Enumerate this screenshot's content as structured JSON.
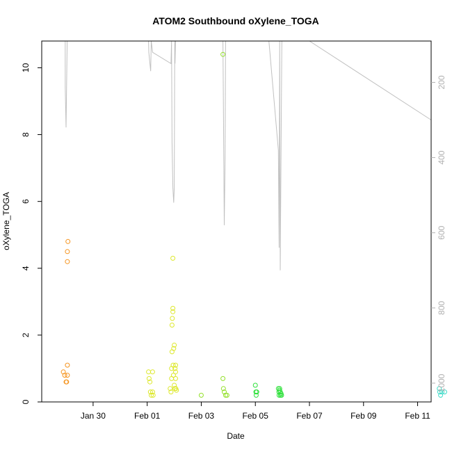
{
  "chart_data": {
    "type": "scatter",
    "title": "ATOM2 Southbound oXylene_TOGA",
    "xlabel": "Date",
    "ylabel": "oXylene_TOGA",
    "x_ticks": [
      "Jan 30",
      "Feb 01",
      "Feb 03",
      "Feb 05",
      "Feb 07",
      "Feb 09",
      "Feb 11"
    ],
    "x_tick_days": [
      30,
      32,
      34,
      36,
      38,
      40,
      42
    ],
    "xlim_days": [
      28.1,
      42.5
    ],
    "ylim": [
      0,
      10.8
    ],
    "y_ticks": [
      0,
      2,
      4,
      6,
      8,
      10
    ],
    "right_axis": {
      "label": "",
      "ticks": [
        200,
        400,
        600,
        800,
        1000
      ],
      "lim": [
        90,
        1050
      ],
      "reversed": true,
      "color": "#b0b0b0"
    },
    "grid": false,
    "legend": "none",
    "colors": {
      "orange": "#f5941e",
      "yellow": "#dde82c",
      "lime": "#93e02a",
      "green": "#2ee03a",
      "cyan": "#3fdcc9",
      "profile_line": "#c0c0c0"
    },
    "points": [
      {
        "x": 28.9,
        "y": 0.9,
        "c": "orange"
      },
      {
        "x": 28.95,
        "y": 0.8,
        "c": "orange"
      },
      {
        "x": 29.0,
        "y": 0.6,
        "c": "orange"
      },
      {
        "x": 29.02,
        "y": 0.6,
        "c": "orange"
      },
      {
        "x": 29.05,
        "y": 0.8,
        "c": "orange"
      },
      {
        "x": 29.05,
        "y": 1.1,
        "c": "orange"
      },
      {
        "x": 29.05,
        "y": 4.2,
        "c": "orange"
      },
      {
        "x": 29.05,
        "y": 4.5,
        "c": "orange"
      },
      {
        "x": 29.07,
        "y": 4.8,
        "c": "orange"
      },
      {
        "x": 32.05,
        "y": 0.9,
        "c": "yellow"
      },
      {
        "x": 32.07,
        "y": 0.7,
        "c": "yellow"
      },
      {
        "x": 32.1,
        "y": 0.6,
        "c": "yellow"
      },
      {
        "x": 32.12,
        "y": 0.3,
        "c": "yellow"
      },
      {
        "x": 32.15,
        "y": 0.2,
        "c": "yellow"
      },
      {
        "x": 32.2,
        "y": 0.3,
        "c": "yellow"
      },
      {
        "x": 32.2,
        "y": 0.9,
        "c": "yellow"
      },
      {
        "x": 32.22,
        "y": 0.2,
        "c": "yellow"
      },
      {
        "x": 32.85,
        "y": 0.4,
        "c": "yellow"
      },
      {
        "x": 32.88,
        "y": 0.3,
        "c": "yellow"
      },
      {
        "x": 32.9,
        "y": 0.7,
        "c": "yellow"
      },
      {
        "x": 32.9,
        "y": 1.0,
        "c": "yellow"
      },
      {
        "x": 32.92,
        "y": 1.5,
        "c": "yellow"
      },
      {
        "x": 32.92,
        "y": 2.3,
        "c": "yellow"
      },
      {
        "x": 32.93,
        "y": 2.5,
        "c": "yellow"
      },
      {
        "x": 32.95,
        "y": 2.7,
        "c": "yellow"
      },
      {
        "x": 32.95,
        "y": 2.8,
        "c": "yellow"
      },
      {
        "x": 32.95,
        "y": 4.3,
        "c": "yellow"
      },
      {
        "x": 32.96,
        "y": 1.1,
        "c": "yellow"
      },
      {
        "x": 32.97,
        "y": 0.8,
        "c": "yellow"
      },
      {
        "x": 32.98,
        "y": 1.6,
        "c": "yellow"
      },
      {
        "x": 33.0,
        "y": 1.7,
        "c": "yellow"
      },
      {
        "x": 33.0,
        "y": 0.5,
        "c": "yellow"
      },
      {
        "x": 33.02,
        "y": 0.4,
        "c": "yellow"
      },
      {
        "x": 33.03,
        "y": 1.0,
        "c": "yellow"
      },
      {
        "x": 33.05,
        "y": 0.9,
        "c": "yellow"
      },
      {
        "x": 33.05,
        "y": 0.7,
        "c": "yellow"
      },
      {
        "x": 33.05,
        "y": 1.1,
        "c": "yellow"
      },
      {
        "x": 33.06,
        "y": 0.4,
        "c": "yellow"
      },
      {
        "x": 33.08,
        "y": 0.35,
        "c": "yellow"
      },
      {
        "x": 34.0,
        "y": 0.2,
        "c": "lime"
      },
      {
        "x": 34.8,
        "y": 10.4,
        "c": "lime"
      },
      {
        "x": 34.8,
        "y": 0.7,
        "c": "lime"
      },
      {
        "x": 34.82,
        "y": 0.4,
        "c": "lime"
      },
      {
        "x": 34.85,
        "y": 0.3,
        "c": "lime"
      },
      {
        "x": 34.9,
        "y": 0.2,
        "c": "lime"
      },
      {
        "x": 34.95,
        "y": 0.2,
        "c": "lime"
      },
      {
        "x": 36.0,
        "y": 0.5,
        "c": "green"
      },
      {
        "x": 36.02,
        "y": 0.3,
        "c": "green"
      },
      {
        "x": 36.03,
        "y": 0.2,
        "c": "green"
      },
      {
        "x": 36.05,
        "y": 0.3,
        "c": "green"
      },
      {
        "x": 36.85,
        "y": 0.4,
        "c": "green"
      },
      {
        "x": 36.87,
        "y": 0.3,
        "c": "green"
      },
      {
        "x": 36.88,
        "y": 0.2,
        "c": "green"
      },
      {
        "x": 36.9,
        "y": 0.4,
        "c": "green"
      },
      {
        "x": 36.9,
        "y": 0.35,
        "c": "green"
      },
      {
        "x": 36.92,
        "y": 0.3,
        "c": "green"
      },
      {
        "x": 36.93,
        "y": 0.2,
        "c": "green"
      },
      {
        "x": 36.95,
        "y": 0.25,
        "c": "green"
      },
      {
        "x": 36.97,
        "y": 0.2,
        "c": "green"
      },
      {
        "x": 42.8,
        "y": 0.4,
        "c": "cyan"
      },
      {
        "x": 42.82,
        "y": 0.3,
        "c": "cyan"
      },
      {
        "x": 42.85,
        "y": 0.2,
        "c": "cyan"
      },
      {
        "x": 42.9,
        "y": 0.3,
        "c": "cyan"
      },
      {
        "x": 43.0,
        "y": 0.3,
        "c": "cyan"
      }
    ],
    "profile_line": [
      [
        28.96,
        90
      ],
      [
        28.97,
        90
      ],
      [
        28.97,
        210
      ],
      [
        28.98,
        250
      ],
      [
        29.0,
        320
      ],
      [
        29.04,
        90
      ],
      [
        29.05,
        90
      ],
      [
        32.05,
        90
      ],
      [
        32.06,
        120
      ],
      [
        32.1,
        150
      ],
      [
        32.13,
        170
      ],
      [
        32.15,
        90
      ],
      [
        32.2,
        120
      ],
      [
        32.88,
        150
      ],
      [
        32.9,
        90
      ],
      [
        32.92,
        360
      ],
      [
        32.95,
        480
      ],
      [
        32.98,
        520
      ],
      [
        33.0,
        480
      ],
      [
        33.02,
        90
      ],
      [
        33.03,
        150
      ],
      [
        33.05,
        90
      ],
      [
        34.8,
        90
      ],
      [
        34.85,
        580
      ],
      [
        34.88,
        400
      ],
      [
        34.9,
        90
      ],
      [
        35.9,
        90
      ],
      [
        36.5,
        90
      ],
      [
        36.85,
        380
      ],
      [
        36.88,
        640
      ],
      [
        36.9,
        90
      ],
      [
        36.92,
        700
      ],
      [
        36.95,
        380
      ],
      [
        36.98,
        90
      ],
      [
        38.0,
        90
      ],
      [
        42.8,
        300
      ],
      [
        42.85,
        90
      ],
      [
        42.86,
        580
      ]
    ]
  }
}
